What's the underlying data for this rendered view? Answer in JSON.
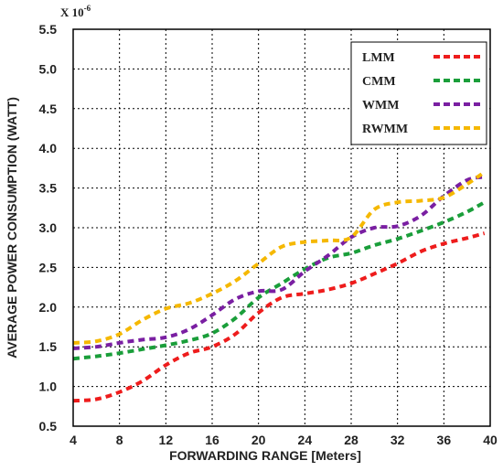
{
  "chart_data": {
    "type": "line",
    "xlabel": "FORWARDING RANGE [Meters]",
    "ylabel": "AVERAGE POWER CONSUMPTION (WATT)",
    "y_scale_note": "X 10",
    "y_scale_exponent": "-6",
    "xlim": [
      4,
      40
    ],
    "ylim": [
      0.5,
      5.5
    ],
    "x_ticks": [
      4,
      8,
      12,
      16,
      20,
      24,
      28,
      32,
      36,
      40
    ],
    "y_ticks": [
      0.5,
      1.0,
      1.5,
      2.0,
      2.5,
      3.0,
      3.5,
      4.0,
      4.5,
      5.0,
      5.5
    ],
    "x_tick_labels": [
      "4",
      "8",
      "12",
      "16",
      "20",
      "24",
      "28",
      "32",
      "36",
      "40"
    ],
    "y_tick_labels": [
      "0.5",
      "1.0",
      "1.5",
      "2.0",
      "2.5",
      "3.0",
      "3.5",
      "4.0",
      "4.5",
      "5.0",
      "5.5"
    ],
    "grid": true,
    "legend_position": "top-right",
    "x": [
      4,
      6,
      8,
      10,
      12,
      14,
      16,
      18,
      20,
      22,
      24,
      26,
      28,
      30,
      32,
      34,
      36,
      38,
      39.5
    ],
    "series": [
      {
        "name": "LMM",
        "color": "#ee1c1c",
        "values": [
          0.82,
          0.84,
          0.93,
          1.07,
          1.27,
          1.42,
          1.5,
          1.66,
          1.93,
          2.12,
          2.17,
          2.22,
          2.3,
          2.42,
          2.55,
          2.7,
          2.8,
          2.87,
          2.93
        ]
      },
      {
        "name": "CMM",
        "color": "#1a9e3a",
        "values": [
          1.35,
          1.38,
          1.42,
          1.47,
          1.52,
          1.58,
          1.67,
          1.86,
          2.12,
          2.3,
          2.48,
          2.62,
          2.68,
          2.78,
          2.86,
          2.96,
          3.07,
          3.2,
          3.32
        ]
      },
      {
        "name": "WMM",
        "color": "#7a1fa2",
        "values": [
          1.48,
          1.5,
          1.55,
          1.59,
          1.62,
          1.72,
          1.9,
          2.1,
          2.2,
          2.22,
          2.45,
          2.65,
          2.88,
          3.0,
          3.02,
          3.15,
          3.4,
          3.6,
          3.64
        ]
      },
      {
        "name": "RWMM",
        "color": "#f5b800",
        "values": [
          1.55,
          1.57,
          1.66,
          1.84,
          1.98,
          2.05,
          2.17,
          2.33,
          2.55,
          2.76,
          2.82,
          2.84,
          2.88,
          3.23,
          3.32,
          3.34,
          3.38,
          3.55,
          3.7
        ]
      }
    ]
  }
}
